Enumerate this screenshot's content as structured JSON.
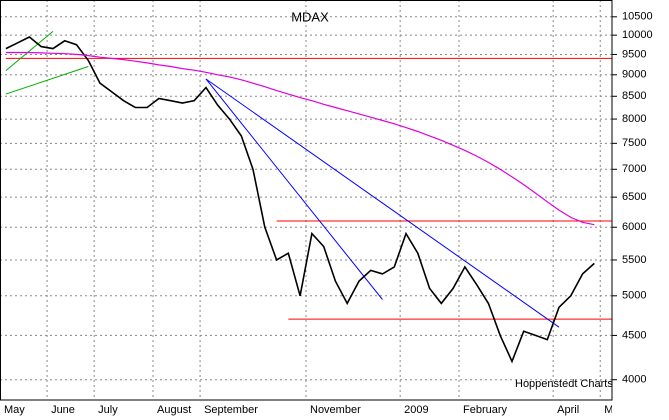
{
  "chart_data": {
    "type": "line",
    "title": "MDAX",
    "annotation": "Hoppenstedt Charts",
    "log": true,
    "grid": true,
    "ylim": [
      3790,
      10980
    ],
    "yticks": [
      4000,
      4500,
      5000,
      5500,
      6000,
      6500,
      7000,
      7500,
      8000,
      8500,
      9000,
      9500,
      10000,
      10500
    ],
    "categories": [
      "May",
      null,
      null,
      null,
      "June",
      null,
      null,
      null,
      "July",
      null,
      null,
      null,
      null,
      "August",
      null,
      null,
      null,
      "September",
      null,
      null,
      null,
      null,
      null,
      null,
      null,
      null,
      "November",
      null,
      null,
      null,
      null,
      null,
      null,
      null,
      "2009",
      null,
      null,
      null,
      null,
      "February",
      null,
      null,
      null,
      null,
      null,
      null,
      null,
      "April",
      null,
      null,
      null,
      "May"
    ],
    "series": [
      {
        "color": "#000000",
        "values": [
          9650,
          9800,
          9950,
          9700,
          9650,
          9850,
          9750,
          9350,
          8800,
          8600,
          8400,
          8250,
          8250,
          8450,
          8400,
          8350,
          8400,
          8700,
          8300,
          8000,
          7650,
          7000,
          6000,
          5500,
          5600,
          5000,
          5900,
          5700,
          5200,
          4900,
          5200,
          5350,
          5300,
          5400,
          5900,
          5600,
          5100,
          4900,
          5100,
          5400,
          5150,
          4900,
          4500,
          4200,
          4550,
          4500,
          4450,
          4850,
          5000,
          5300,
          5450,
          null
        ]
      },
      {
        "color": "#e000e0",
        "values": [
          9550,
          9550,
          9550,
          9540,
          9530,
          9520,
          9500,
          9470,
          9430,
          9400,
          9370,
          9330,
          9290,
          9240,
          9200,
          9150,
          9110,
          9060,
          9000,
          8950,
          8880,
          8800,
          8720,
          8630,
          8550,
          8470,
          8400,
          8320,
          8250,
          8180,
          8110,
          8040,
          7970,
          7900,
          7820,
          7740,
          7650,
          7560,
          7460,
          7360,
          7250,
          7130,
          7000,
          6860,
          6720,
          6570,
          6420,
          6280,
          6160,
          6080,
          6040,
          null
        ]
      }
    ],
    "hlines": [
      {
        "value": 9400,
        "color": "#ff0000",
        "from": 0
      },
      {
        "value": 6100,
        "color": "#ff0000",
        "from": 23
      },
      {
        "value": 4700,
        "color": "#ff0000",
        "from": 24
      }
    ],
    "trendlines": [
      {
        "color": "#0000ff",
        "from": 17,
        "to": 32,
        "values": [
          8900,
          4950
        ]
      },
      {
        "color": "#0000ff",
        "from": 17,
        "to": 47,
        "values": [
          8900,
          4600
        ]
      },
      {
        "color": "#00b000",
        "from": 0,
        "to": 7,
        "values": [
          8550,
          9200
        ]
      },
      {
        "color": "#00b000",
        "from": 0,
        "to": 4,
        "values": [
          9100,
          10100
        ]
      }
    ]
  }
}
